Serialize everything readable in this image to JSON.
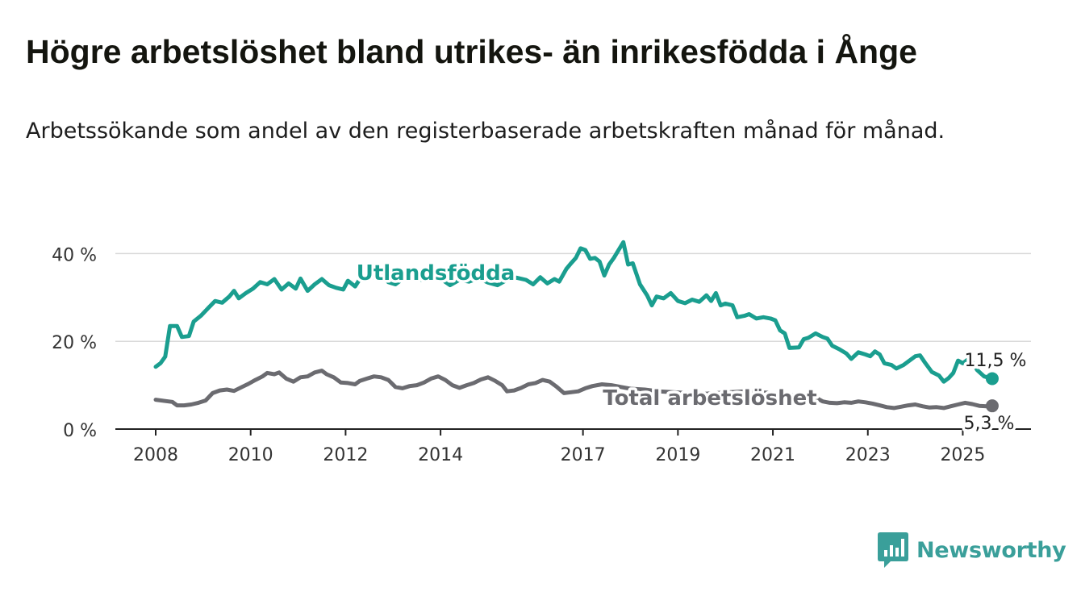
{
  "header": {
    "title": "Högre arbetslöshet bland utrikes- än inrikesfödda i Ånge",
    "subtitle": "Arbetssökande som andel av den registerbaserade arbetskraften månad för månad."
  },
  "brand": {
    "name": "Newsworthy",
    "color": "#3a9f9a"
  },
  "chart_data": {
    "type": "line",
    "title": "Högre arbetslöshet bland utrikes- än inrikesfödda i Ånge",
    "subtitle": "Arbetssökande som andel av den registerbaserade arbetskraften månad för månad.",
    "x_ticks": [
      "2008",
      "2010",
      "2012",
      "2014",
      "2017",
      "2019",
      "2021",
      "2023",
      "2025"
    ],
    "y_ticks": [
      "0 %",
      "20 %",
      "40 %"
    ],
    "ylim": [
      0,
      43
    ],
    "xlim": [
      2008.0,
      2025.9
    ],
    "grid": "horizontal",
    "legend": "inline labels",
    "series": [
      {
        "name": "Utlandsfödda",
        "color": "#1a9e8f",
        "end_label": "11,5 %",
        "points": [
          [
            2008.0,
            14.2
          ],
          [
            2008.1,
            15.0
          ],
          [
            2008.2,
            16.5
          ],
          [
            2008.3,
            23.5
          ],
          [
            2008.45,
            23.5
          ],
          [
            2008.55,
            21.0
          ],
          [
            2008.7,
            21.2
          ],
          [
            2008.8,
            24.5
          ],
          [
            2008.95,
            25.8
          ],
          [
            2009.1,
            27.5
          ],
          [
            2009.25,
            29.2
          ],
          [
            2009.4,
            28.8
          ],
          [
            2009.55,
            30.2
          ],
          [
            2009.65,
            31.5
          ],
          [
            2009.75,
            29.8
          ],
          [
            2009.9,
            31.0
          ],
          [
            2010.05,
            32.0
          ],
          [
            2010.2,
            33.5
          ],
          [
            2010.35,
            33.0
          ],
          [
            2010.5,
            34.2
          ],
          [
            2010.65,
            31.8
          ],
          [
            2010.8,
            33.2
          ],
          [
            2010.95,
            32.0
          ],
          [
            2011.05,
            34.3
          ],
          [
            2011.2,
            31.5
          ],
          [
            2011.35,
            33.0
          ],
          [
            2011.5,
            34.2
          ],
          [
            2011.65,
            32.8
          ],
          [
            2011.8,
            32.2
          ],
          [
            2011.95,
            31.8
          ],
          [
            2012.05,
            33.8
          ],
          [
            2012.2,
            32.5
          ],
          [
            2012.3,
            34.2
          ],
          [
            2012.45,
            34.0
          ],
          [
            2012.6,
            34.8
          ],
          [
            2012.75,
            35.0
          ],
          [
            2012.9,
            33.5
          ],
          [
            2013.05,
            33.0
          ],
          [
            2013.2,
            34.2
          ],
          [
            2013.4,
            34.6
          ],
          [
            2013.6,
            34.0
          ],
          [
            2013.8,
            35.0
          ],
          [
            2014.0,
            34.3
          ],
          [
            2014.2,
            32.8
          ],
          [
            2014.4,
            34.0
          ],
          [
            2014.6,
            33.6
          ],
          [
            2014.8,
            34.4
          ],
          [
            2015.0,
            33.4
          ],
          [
            2015.2,
            32.8
          ],
          [
            2015.4,
            34.0
          ],
          [
            2015.6,
            34.5
          ],
          [
            2015.8,
            34.0
          ],
          [
            2015.95,
            33.0
          ],
          [
            2016.1,
            34.6
          ],
          [
            2016.25,
            33.2
          ],
          [
            2016.4,
            34.2
          ],
          [
            2016.5,
            33.6
          ],
          [
            2016.65,
            36.5
          ],
          [
            2016.75,
            37.8
          ],
          [
            2016.85,
            39.0
          ],
          [
            2016.95,
            41.2
          ],
          [
            2017.05,
            40.8
          ],
          [
            2017.15,
            38.8
          ],
          [
            2017.25,
            39.0
          ],
          [
            2017.35,
            38.2
          ],
          [
            2017.45,
            35.0
          ],
          [
            2017.55,
            37.5
          ],
          [
            2017.65,
            39.0
          ],
          [
            2017.75,
            40.8
          ],
          [
            2017.85,
            42.6
          ],
          [
            2017.95,
            37.5
          ],
          [
            2018.05,
            37.8
          ],
          [
            2018.2,
            33.0
          ],
          [
            2018.35,
            30.5
          ],
          [
            2018.45,
            28.2
          ],
          [
            2018.55,
            30.2
          ],
          [
            2018.7,
            29.8
          ],
          [
            2018.85,
            31.0
          ],
          [
            2019.0,
            29.2
          ],
          [
            2019.15,
            28.7
          ],
          [
            2019.3,
            29.5
          ],
          [
            2019.45,
            29.0
          ],
          [
            2019.6,
            30.5
          ],
          [
            2019.7,
            29.2
          ],
          [
            2019.8,
            31.0
          ],
          [
            2019.9,
            28.2
          ],
          [
            2020.0,
            28.6
          ],
          [
            2020.15,
            28.2
          ],
          [
            2020.25,
            25.5
          ],
          [
            2020.4,
            25.8
          ],
          [
            2020.5,
            26.2
          ],
          [
            2020.65,
            25.2
          ],
          [
            2020.8,
            25.5
          ],
          [
            2020.95,
            25.2
          ],
          [
            2021.05,
            24.8
          ],
          [
            2021.15,
            22.5
          ],
          [
            2021.25,
            21.8
          ],
          [
            2021.35,
            18.5
          ],
          [
            2021.55,
            18.6
          ],
          [
            2021.65,
            20.5
          ],
          [
            2021.75,
            20.8
          ],
          [
            2021.9,
            21.8
          ],
          [
            2022.05,
            21.0
          ],
          [
            2022.15,
            20.6
          ],
          [
            2022.25,
            19.0
          ],
          [
            2022.4,
            18.2
          ],
          [
            2022.55,
            17.2
          ],
          [
            2022.65,
            16.0
          ],
          [
            2022.8,
            17.5
          ],
          [
            2022.95,
            17.0
          ],
          [
            2023.05,
            16.6
          ],
          [
            2023.15,
            17.7
          ],
          [
            2023.25,
            17.0
          ],
          [
            2023.35,
            15.0
          ],
          [
            2023.5,
            14.6
          ],
          [
            2023.6,
            13.8
          ],
          [
            2023.75,
            14.6
          ],
          [
            2023.85,
            15.4
          ],
          [
            2024.0,
            16.6
          ],
          [
            2024.1,
            16.8
          ],
          [
            2024.2,
            15.2
          ],
          [
            2024.35,
            13.0
          ],
          [
            2024.5,
            12.2
          ],
          [
            2024.6,
            10.8
          ],
          [
            2024.7,
            11.6
          ],
          [
            2024.8,
            12.8
          ],
          [
            2024.9,
            15.6
          ],
          [
            2025.0,
            15.0
          ],
          [
            2025.15,
            16.2
          ],
          [
            2025.3,
            13.5
          ],
          [
            2025.45,
            12.0
          ],
          [
            2025.62,
            11.5
          ]
        ]
      },
      {
        "name": "Total arbetslöshet",
        "color": "#6b6b70",
        "end_label": "5,3 %",
        "points": [
          [
            2008.0,
            6.7
          ],
          [
            2008.2,
            6.4
          ],
          [
            2008.35,
            6.2
          ],
          [
            2008.45,
            5.4
          ],
          [
            2008.6,
            5.4
          ],
          [
            2008.75,
            5.6
          ],
          [
            2008.9,
            6.0
          ],
          [
            2009.05,
            6.5
          ],
          [
            2009.2,
            8.2
          ],
          [
            2009.35,
            8.8
          ],
          [
            2009.5,
            9.0
          ],
          [
            2009.65,
            8.7
          ],
          [
            2009.8,
            9.5
          ],
          [
            2009.95,
            10.3
          ],
          [
            2010.1,
            11.2
          ],
          [
            2010.25,
            12.0
          ],
          [
            2010.35,
            12.8
          ],
          [
            2010.5,
            12.5
          ],
          [
            2010.6,
            12.9
          ],
          [
            2010.75,
            11.5
          ],
          [
            2010.9,
            10.8
          ],
          [
            2011.05,
            11.8
          ],
          [
            2011.2,
            12.0
          ],
          [
            2011.35,
            12.9
          ],
          [
            2011.5,
            13.3
          ],
          [
            2011.6,
            12.5
          ],
          [
            2011.75,
            11.8
          ],
          [
            2011.9,
            10.6
          ],
          [
            2012.05,
            10.5
          ],
          [
            2012.2,
            10.2
          ],
          [
            2012.3,
            11.0
          ],
          [
            2012.45,
            11.5
          ],
          [
            2012.6,
            12.0
          ],
          [
            2012.75,
            11.8
          ],
          [
            2012.9,
            11.2
          ],
          [
            2013.05,
            9.6
          ],
          [
            2013.2,
            9.3
          ],
          [
            2013.35,
            9.8
          ],
          [
            2013.5,
            10.0
          ],
          [
            2013.65,
            10.6
          ],
          [
            2013.8,
            11.5
          ],
          [
            2013.95,
            12.0
          ],
          [
            2014.1,
            11.2
          ],
          [
            2014.25,
            10.0
          ],
          [
            2014.4,
            9.4
          ],
          [
            2014.55,
            10.0
          ],
          [
            2014.7,
            10.5
          ],
          [
            2014.85,
            11.3
          ],
          [
            2015.0,
            11.8
          ],
          [
            2015.15,
            11.0
          ],
          [
            2015.3,
            10.0
          ],
          [
            2015.4,
            8.6
          ],
          [
            2015.55,
            8.8
          ],
          [
            2015.7,
            9.4
          ],
          [
            2015.85,
            10.2
          ],
          [
            2016.0,
            10.5
          ],
          [
            2016.15,
            11.2
          ],
          [
            2016.3,
            10.8
          ],
          [
            2016.45,
            9.6
          ],
          [
            2016.6,
            8.2
          ],
          [
            2016.75,
            8.4
          ],
          [
            2016.9,
            8.6
          ],
          [
            2017.05,
            9.3
          ],
          [
            2017.2,
            9.8
          ],
          [
            2017.4,
            10.2
          ],
          [
            2017.6,
            10.0
          ],
          [
            2017.8,
            9.6
          ],
          [
            2018.0,
            9.2
          ],
          [
            2018.3,
            9.0
          ],
          [
            2018.6,
            8.6
          ],
          [
            2018.9,
            8.4
          ],
          [
            2019.2,
            8.2
          ],
          [
            2019.5,
            8.0
          ],
          [
            2019.8,
            8.2
          ],
          [
            2020.1,
            8.4
          ],
          [
            2020.4,
            8.6
          ],
          [
            2020.7,
            8.4
          ],
          [
            2021.0,
            8.2
          ],
          [
            2021.3,
            7.8
          ],
          [
            2021.6,
            7.6
          ],
          [
            2021.75,
            7.4
          ],
          [
            2021.9,
            7.2
          ],
          [
            2022.05,
            6.3
          ],
          [
            2022.2,
            6.0
          ],
          [
            2022.35,
            5.9
          ],
          [
            2022.5,
            6.1
          ],
          [
            2022.65,
            6.0
          ],
          [
            2022.8,
            6.3
          ],
          [
            2022.95,
            6.1
          ],
          [
            2023.1,
            5.8
          ],
          [
            2023.25,
            5.4
          ],
          [
            2023.4,
            5.0
          ],
          [
            2023.55,
            4.8
          ],
          [
            2023.7,
            5.1
          ],
          [
            2023.85,
            5.4
          ],
          [
            2024.0,
            5.6
          ],
          [
            2024.15,
            5.2
          ],
          [
            2024.3,
            4.9
          ],
          [
            2024.45,
            5.0
          ],
          [
            2024.6,
            4.8
          ],
          [
            2024.75,
            5.2
          ],
          [
            2024.9,
            5.6
          ],
          [
            2025.05,
            6.0
          ],
          [
            2025.2,
            5.7
          ],
          [
            2025.35,
            5.3
          ],
          [
            2025.5,
            5.2
          ],
          [
            2025.62,
            5.3
          ]
        ]
      }
    ]
  }
}
